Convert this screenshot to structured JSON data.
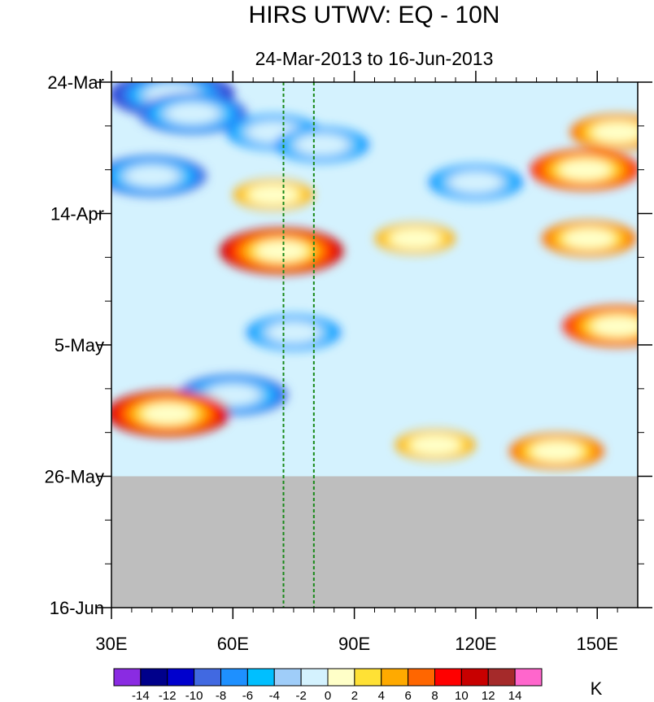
{
  "chart_data": {
    "type": "heatmap",
    "title": "HIRS UTWV: EQ - 10N",
    "subtitle": "24-Mar-2013 to 16-Jun-2013",
    "x_ticks": [
      {
        "value": 30,
        "label": "30E"
      },
      {
        "value": 60,
        "label": "60E"
      },
      {
        "value": 90,
        "label": "90E"
      },
      {
        "value": 120,
        "label": "120E"
      },
      {
        "value": 150,
        "label": "150E"
      }
    ],
    "x_range": [
      30,
      160
    ],
    "y_ticks": [
      {
        "value": "2013-03-24",
        "label": "24-Mar"
      },
      {
        "value": "2013-04-14",
        "label": "14-Apr"
      },
      {
        "value": "2013-05-05",
        "label": "5-May"
      },
      {
        "value": "2013-05-26",
        "label": "26-May"
      },
      {
        "value": "2013-06-16",
        "label": "16-Jun"
      }
    ],
    "y_range": [
      "2013-03-24",
      "2013-06-16"
    ],
    "data_end_date": "2013-05-26",
    "reference_longitudes": [
      72.5,
      80
    ],
    "colorbar": {
      "unit": "K",
      "levels": [
        -14,
        -12,
        -10,
        -8,
        -6,
        -4,
        -2,
        0,
        2,
        4,
        6,
        8,
        10,
        12,
        14
      ],
      "level_labels": [
        "-14",
        "-12",
        "-10",
        "-8",
        "-6",
        "-4",
        "-2",
        "0",
        "2",
        "4",
        "6",
        "8",
        "10",
        "12",
        "14"
      ],
      "colors": [
        "#8a2be2",
        "#00008b",
        "#0000cd",
        "#4169e1",
        "#1e90ff",
        "#00bfff",
        "#9fcdf9",
        "#d4f2fe",
        "#ffffc8",
        "#ffe135",
        "#ffaa00",
        "#ff6600",
        "#ff0000",
        "#c80000",
        "#a52a2a",
        "#ff66cc"
      ]
    },
    "features": [
      {
        "lon": 45,
        "date": "2013-03-26",
        "value": -11
      },
      {
        "lon": 50,
        "date": "2013-03-29",
        "value": -9
      },
      {
        "lon": 70,
        "date": "2013-04-01",
        "value": -7
      },
      {
        "lon": 82,
        "date": "2013-04-03",
        "value": -8
      },
      {
        "lon": 40,
        "date": "2013-04-08",
        "value": -10
      },
      {
        "lon": 120,
        "date": "2013-04-09",
        "value": -8
      },
      {
        "lon": 147,
        "date": "2013-04-07",
        "value": 10
      },
      {
        "lon": 72,
        "date": "2013-04-20",
        "value": 11
      },
      {
        "lon": 70,
        "date": "2013-04-11",
        "value": 5
      },
      {
        "lon": 155,
        "date": "2013-04-01",
        "value": 8
      },
      {
        "lon": 148,
        "date": "2013-04-18",
        "value": 7
      },
      {
        "lon": 75,
        "date": "2013-05-03",
        "value": -8
      },
      {
        "lon": 60,
        "date": "2013-05-13",
        "value": -10
      },
      {
        "lon": 44,
        "date": "2013-05-16",
        "value": 12
      },
      {
        "lon": 155,
        "date": "2013-05-02",
        "value": 9
      },
      {
        "lon": 140,
        "date": "2013-05-22",
        "value": 7
      },
      {
        "lon": 105,
        "date": "2013-04-18",
        "value": 5
      },
      {
        "lon": 110,
        "date": "2013-05-21",
        "value": 5
      }
    ]
  }
}
